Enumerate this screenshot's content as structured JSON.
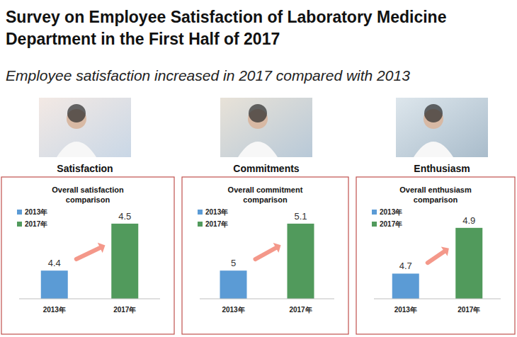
{
  "header": {
    "title": "Survey on Employee Satisfaction of Laboratory Medicine Department in the First Half of 2017",
    "subtitle": "Employee satisfaction increased in 2017 compared with 2013"
  },
  "panel_heads": [
    "Satisfaction",
    "Commitments",
    "Enthusiasm"
  ],
  "chart_data": [
    {
      "type": "bar",
      "title": "Overall satisfaction comparison",
      "categories": [
        "2013年",
        "2017年"
      ],
      "series": [
        {
          "name": "2013年",
          "color": "#5b9bd5",
          "values": [
            4.4,
            null
          ]
        },
        {
          "name": "2017年",
          "color": "#519a5c",
          "values": [
            null,
            4.5
          ]
        }
      ],
      "ylim": [
        4.34,
        4.53
      ],
      "data_labels": true,
      "tick_labels": "x",
      "legend": "top-left",
      "grid": false
    },
    {
      "type": "bar",
      "title": "Overall commitment comparison",
      "categories": [
        "2013年",
        "2017年"
      ],
      "series": [
        {
          "name": "2013年",
          "color": "#5b9bd5",
          "values": [
            5.0,
            null
          ]
        },
        {
          "name": "2017年",
          "color": "#519a5c",
          "values": [
            null,
            5.1
          ]
        }
      ],
      "ylim": [
        4.94,
        5.13
      ],
      "data_labels": true,
      "tick_labels": "x",
      "legend": "top-left",
      "grid": false
    },
    {
      "type": "bar",
      "title": "Overall enthusiasm comparison",
      "categories": [
        "2013年",
        "2017年"
      ],
      "series": [
        {
          "name": "2013年",
          "color": "#5b9bd5",
          "values": [
            4.7,
            null
          ]
        },
        {
          "name": "2017年",
          "color": "#519a5c",
          "values": [
            null,
            4.9
          ]
        }
      ],
      "ylim": [
        4.59,
        4.98
      ],
      "data_labels": true,
      "tick_labels": "x",
      "legend": "top-left",
      "grid": false
    }
  ]
}
